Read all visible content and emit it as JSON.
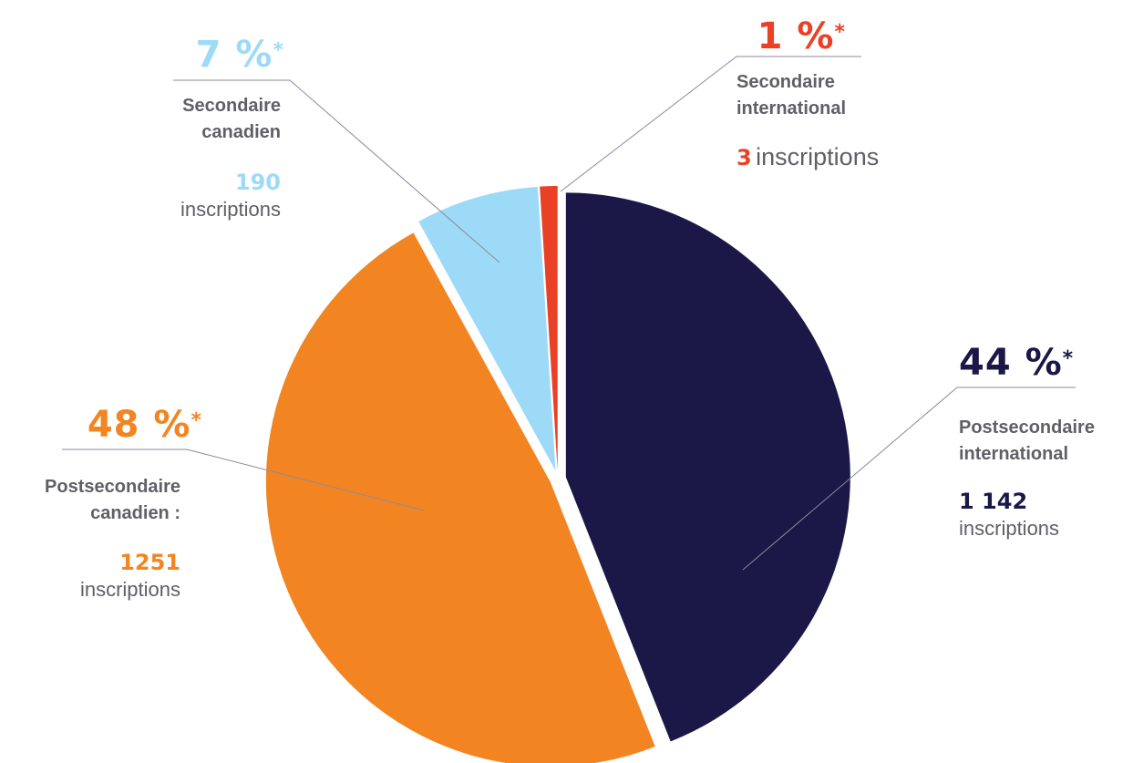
{
  "chart_data": {
    "type": "pie",
    "categories": [
      "Postsecondaire international",
      "Postsecondaire canadien :",
      "Secondaire canadien",
      "Secondaire international"
    ],
    "values": [
      44,
      48,
      7,
      1
    ],
    "value_labels": [
      "44 %",
      "48 %",
      "7 %",
      "1 %"
    ],
    "value_marker": "*",
    "colors": [
      "#1b1747",
      "#f28522",
      "#9ddaf7",
      "#ea4126"
    ],
    "counts": [
      1142,
      1251,
      190,
      3
    ],
    "count_labels": [
      "1 142",
      "1251",
      "190",
      "3"
    ],
    "count_unit": "inscriptions"
  }
}
